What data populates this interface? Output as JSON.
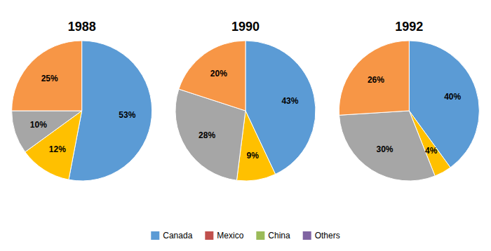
{
  "chart_data": {
    "type": "pie",
    "categories": [
      "Canada",
      "Mexico",
      "China",
      "Others"
    ],
    "colors": [
      "#5B9BD5",
      "#C0504D",
      "#9BBB59",
      "#8064A2"
    ],
    "legend": "bottom",
    "data_labels": true,
    "series": [
      {
        "name": "1988",
        "categories": [
          "Canada",
          "China",
          "Others",
          "Mexico"
        ],
        "values": [
          53,
          12,
          10,
          25
        ],
        "value_labels": [
          "53%",
          "12%",
          "10%",
          "25%"
        ],
        "colors": [
          "#5B9BD5",
          "#FFC000",
          "#A6A6A6",
          "#F79646"
        ]
      },
      {
        "name": "1990",
        "categories": [
          "Canada",
          "China",
          "Others",
          "Mexico"
        ],
        "values": [
          43,
          9,
          28,
          20
        ],
        "value_labels": [
          "43%",
          "9%",
          "28%",
          "20%"
        ],
        "colors": [
          "#5B9BD5",
          "#FFC000",
          "#A6A6A6",
          "#F79646"
        ]
      },
      {
        "name": "1992",
        "categories": [
          "Canada",
          "China",
          "Others",
          "Mexico"
        ],
        "values": [
          40,
          4,
          30,
          26
        ],
        "value_labels": [
          "40%",
          "4%",
          "30%",
          "26%"
        ],
        "colors": [
          "#5B9BD5",
          "#FFC000",
          "#A6A6A6",
          "#F79646"
        ]
      }
    ]
  }
}
